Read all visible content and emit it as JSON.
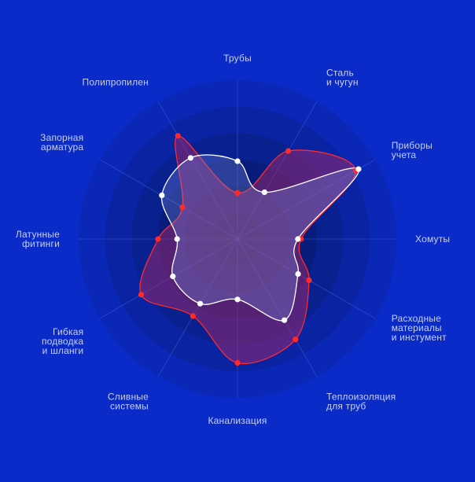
{
  "chart_data": {
    "type": "radar",
    "categories": [
      [
        "Трубы"
      ],
      [
        "Сталь",
        "и чугун"
      ],
      [
        "Приборы",
        "учета"
      ],
      [
        "Хомуты"
      ],
      [
        "Расходные",
        "материалы",
        "и инстумент"
      ],
      [
        "Теплоизоляция",
        "для труб"
      ],
      [
        "Канализация"
      ],
      [
        "Сливные",
        "системы"
      ],
      [
        "Гибкая",
        "подводка",
        "и шланги"
      ],
      [
        "Латунные",
        "фитинги"
      ],
      [
        "Запорная",
        "арматура"
      ],
      [
        "Полипропилен"
      ]
    ],
    "rlim": [
      0,
      1
    ],
    "grid": true,
    "rings": 6,
    "series": [
      {
        "values": [
          0.29,
          0.64,
          0.86,
          0.4,
          0.52,
          0.73,
          0.78,
          0.56,
          0.7,
          0.5,
          0.4,
          0.75
        ],
        "color": "#ff2a2a",
        "fill": "rgba(150, 40, 110, 0.55)"
      },
      {
        "values": [
          0.49,
          0.34,
          0.88,
          0.38,
          0.44,
          0.59,
          0.38,
          0.47,
          0.47,
          0.38,
          0.55,
          0.59
        ],
        "color": "#ffffff",
        "fill": "rgba(120, 140, 220, 0.32)"
      }
    ],
    "colors": {
      "background": "#0a2bc8",
      "ring_outer": "#0a2bc8",
      "ring_inner": "#071455",
      "spoke": "#3a5ad0"
    }
  }
}
